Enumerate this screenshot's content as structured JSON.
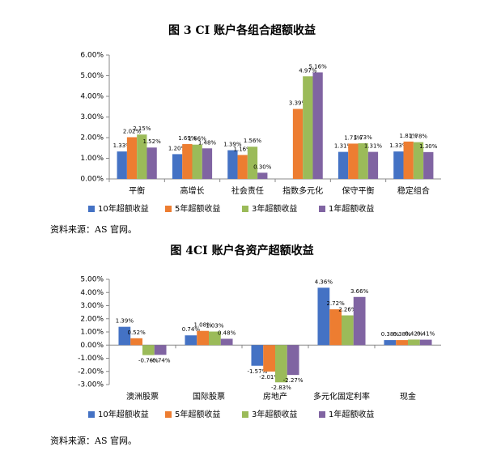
{
  "chart_data": [
    {
      "type": "bar",
      "title": "图 3 CI 账户各组合超额收益",
      "categories": [
        "平衡",
        "高增长",
        "社会责任",
        "指数多元化",
        "保守平衡",
        "稳定组合"
      ],
      "series": [
        {
          "name": "10年超额收益",
          "color": "#4472c4",
          "values": [
            1.33,
            1.2,
            1.39,
            null,
            1.31,
            1.33
          ],
          "value_labels": [
            "1.33%",
            "1.20%",
            "1.39%",
            null,
            "1.31%",
            "1.33%"
          ]
        },
        {
          "name": "5年超额收益",
          "color": "#ed7d31",
          "values": [
            2.02,
            1.69,
            1.16,
            3.39,
            1.71,
            1.81
          ],
          "value_labels": [
            "2.02%",
            "1.69%",
            "1.16%",
            "3.39%",
            "1.71%",
            "1.81%"
          ]
        },
        {
          "name": "3年超额收益",
          "color": "#9bbb59",
          "values": [
            2.15,
            1.66,
            1.56,
            4.97,
            1.73,
            1.78
          ],
          "value_labels": [
            "2.15%",
            "1.66%",
            "1.56%",
            "4.97%",
            "1.73%",
            "1.78%"
          ]
        },
        {
          "name": "1年超额收益",
          "color": "#8064a2",
          "values": [
            1.52,
            1.48,
            0.3,
            5.16,
            1.31,
            1.3
          ],
          "value_labels": [
            "1.52%",
            "1.48%",
            "0.30%",
            "5.16%",
            "1.31%",
            "1.30%"
          ]
        }
      ],
      "ylim": [
        0,
        6
      ],
      "yticks": [
        {
          "value": 0,
          "label": "0.00%"
        },
        {
          "value": 1,
          "label": "1.00%"
        },
        {
          "value": 2,
          "label": "2.00%"
        },
        {
          "value": 3,
          "label": "3.00%"
        },
        {
          "value": 4,
          "label": "4.00%"
        },
        {
          "value": 5,
          "label": "5.00%"
        },
        {
          "value": 6,
          "label": "6.00%"
        }
      ],
      "grid": false,
      "legend": "bottom",
      "source": "资料来源：AS 官网。"
    },
    {
      "type": "bar",
      "title": "图 4CI 账户各资产超额收益",
      "categories": [
        "澳洲股票",
        "国际股票",
        "房地产",
        "多元化固定利率",
        "现金"
      ],
      "series": [
        {
          "name": "10年超额收益",
          "color": "#4472c4",
          "values": [
            1.39,
            0.74,
            -1.57,
            4.36,
            0.38
          ],
          "value_labels": [
            "1.39%",
            "0.74%",
            "-1.57%",
            "4.36%",
            "0.38%"
          ]
        },
        {
          "name": "5年超额收益",
          "color": "#ed7d31",
          "values": [
            0.52,
            1.08,
            -2.01,
            2.72,
            0.38
          ],
          "value_labels": [
            "0.52%",
            "1.08%",
            "-2.01%",
            "2.72%",
            "0.38%"
          ]
        },
        {
          "name": "3年超额收益",
          "color": "#9bbb59",
          "values": [
            -0.76,
            1.03,
            -2.83,
            2.26,
            0.42
          ],
          "value_labels": [
            "-0.76%",
            "1.03%",
            "-2.83%",
            "2.26%",
            "0.42%"
          ]
        },
        {
          "name": "1年超额收益",
          "color": "#8064a2",
          "values": [
            -0.74,
            0.48,
            -2.27,
            3.66,
            0.41
          ],
          "value_labels": [
            "-0.74%",
            "0.48%",
            "-2.27%",
            "3.66%",
            "0.41%"
          ]
        }
      ],
      "ylim": [
        -3,
        5
      ],
      "yticks": [
        {
          "value": -3,
          "label": "-3.00%"
        },
        {
          "value": -2,
          "label": "-2.00%"
        },
        {
          "value": -1,
          "label": "-1.00%"
        },
        {
          "value": 0,
          "label": "0.00%"
        },
        {
          "value": 1,
          "label": "1.00%"
        },
        {
          "value": 2,
          "label": "2.00%"
        },
        {
          "value": 3,
          "label": "3.00%"
        },
        {
          "value": 4,
          "label": "4.00%"
        },
        {
          "value": 5,
          "label": "5.00%"
        }
      ],
      "grid": false,
      "legend": "bottom",
      "source": "资料来源：AS 官网。"
    }
  ]
}
